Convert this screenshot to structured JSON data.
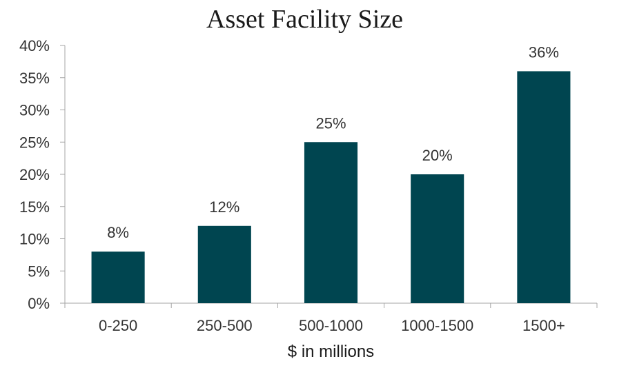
{
  "chart_data": {
    "type": "bar",
    "title": "Asset Facility Size",
    "xlabel": "$ in millions",
    "ylabel": "",
    "categories": [
      "0-250",
      "250-500",
      "500-1000",
      "1000-1500",
      "1500+"
    ],
    "values": [
      8,
      12,
      25,
      20,
      36
    ],
    "data_labels": [
      "8%",
      "12%",
      "25%",
      "20%",
      "36%"
    ],
    "ylim": [
      0,
      40
    ],
    "yticks": [
      0,
      5,
      10,
      15,
      20,
      25,
      30,
      35,
      40
    ],
    "ytick_labels": [
      "0%",
      "5%",
      "10%",
      "15%",
      "20%",
      "25%",
      "30%",
      "35%",
      "40%"
    ],
    "grid": false,
    "legend": "none",
    "bar_color": "#004550",
    "axis_color": "#a6a6a6"
  }
}
